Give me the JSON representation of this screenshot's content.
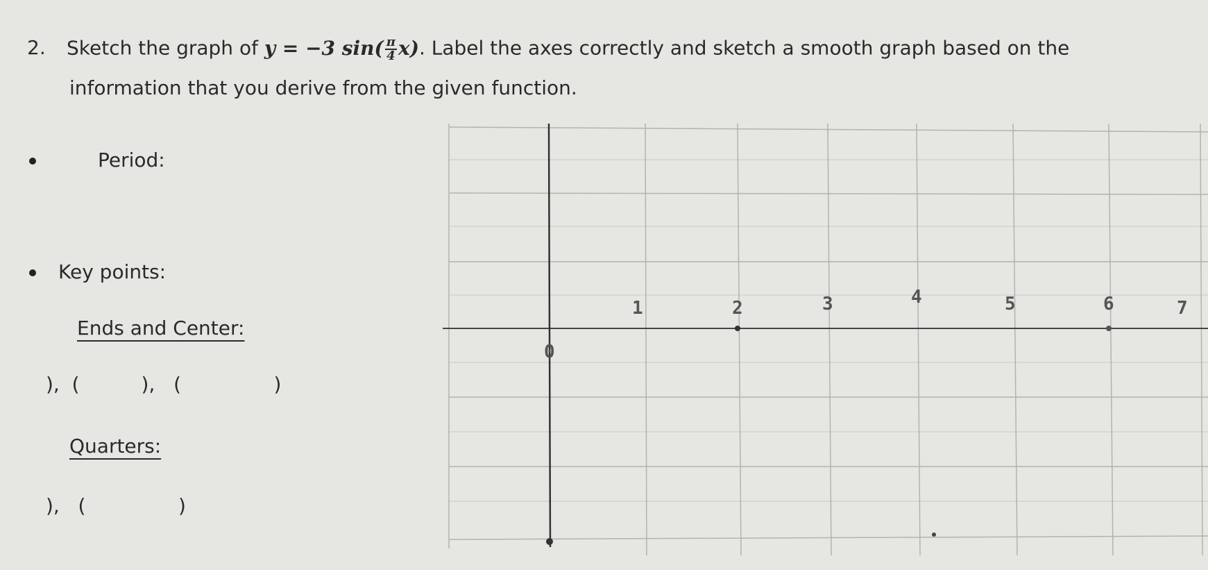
{
  "question": {
    "number": "2.",
    "lead": "Sketch the graph of",
    "equation": {
      "lhs": "y = −3 sin",
      "numerator": "π",
      "denominator": "4",
      "variable": "x"
    },
    "rest": ". Label the axes correctly and sketch a smooth graph based on the",
    "line2": "information that you derive from the given function."
  },
  "items": {
    "period": "Period:",
    "key_points": "Key points:",
    "ends_center": "Ends and Center:",
    "ends_center_blanks": "),  (          ),   (               )",
    "quarters": "Quarters:",
    "quarters_blanks": "),   (               )"
  },
  "graph": {
    "origin_label": "0",
    "x_labels": [
      "1",
      "2",
      "3",
      "4",
      "5",
      "6",
      "7"
    ]
  }
}
